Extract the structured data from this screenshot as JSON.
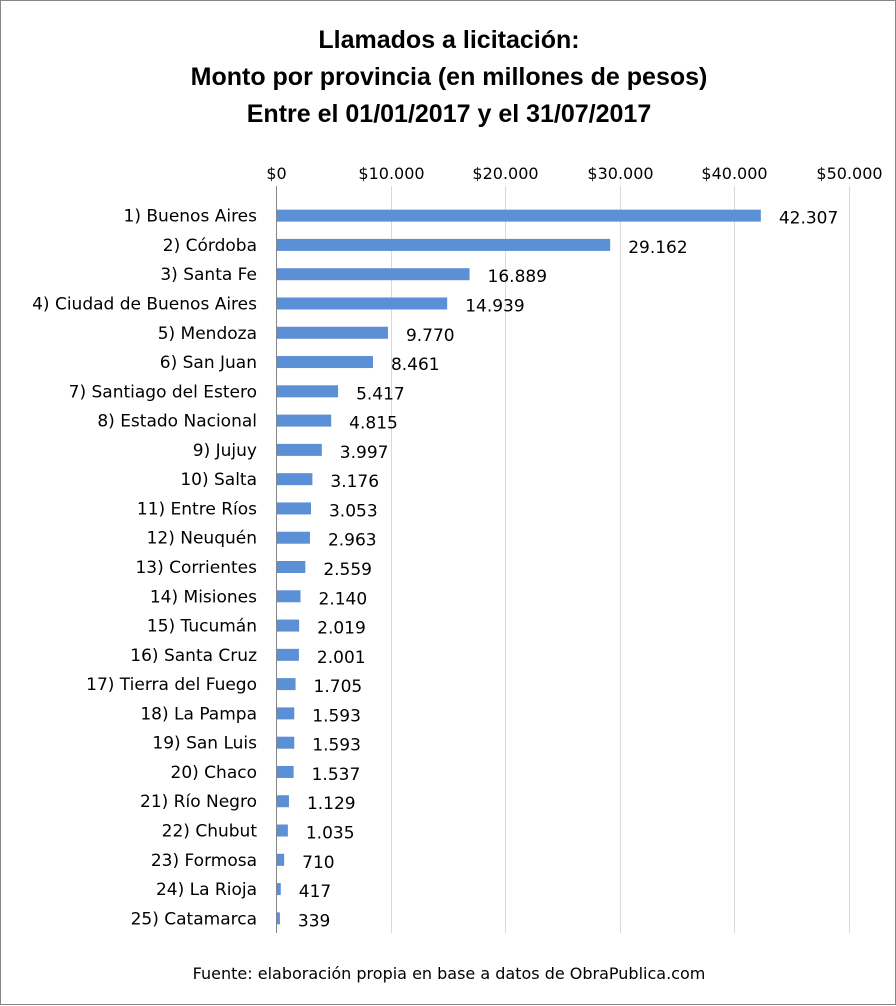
{
  "chart_data": {
    "type": "bar",
    "orientation": "horizontal",
    "title": [
      "Llamados a licitación:",
      "Monto por provincia (en millones de pesos)",
      "Entre el 01/01/2017 y el 31/07/2017"
    ],
    "categories": [
      "1) Buenos Aires",
      "2) Córdoba",
      "3) Santa Fe",
      "4) Ciudad de Buenos Aires",
      "5) Mendoza",
      "6) San Juan",
      "7) Santiago del Estero",
      "8) Estado Nacional",
      "9) Jujuy",
      "10) Salta",
      "11) Entre Ríos",
      "12) Neuquén",
      "13) Corrientes",
      "14) Misiones",
      "15) Tucumán",
      "16) Santa Cruz",
      "17) Tierra del Fuego",
      "18) La Pampa",
      "19) San Luis",
      "20) Chaco",
      "21) Río Negro",
      "22) Chubut",
      "23) Formosa",
      "24) La Rioja",
      "25) Catamarca"
    ],
    "values": [
      42307,
      29162,
      16889,
      14939,
      9770,
      8461,
      5417,
      4815,
      3997,
      3176,
      3053,
      2963,
      2559,
      2140,
      2019,
      2001,
      1705,
      1593,
      1593,
      1537,
      1129,
      1035,
      710,
      417,
      339
    ],
    "value_labels": [
      "42.307",
      "29.162",
      "16.889",
      "14.939",
      "9.770",
      "8.461",
      "5.417",
      "4.815",
      "3.997",
      "3.176",
      "3.053",
      "2.963",
      "2.559",
      "2.140",
      "2.019",
      "2.001",
      "1.705",
      "1.593",
      "1.593",
      "1.537",
      "1.129",
      "1.035",
      "710",
      "417",
      "339"
    ],
    "x_ticks": [
      0,
      10000,
      20000,
      30000,
      40000,
      50000
    ],
    "x_tick_labels": [
      "$0",
      "$10.000",
      "$20.000",
      "$30.000",
      "$40.000",
      "$50.000"
    ],
    "xlim": [
      0,
      50000
    ],
    "x_axis_position": "top",
    "grid": true,
    "bar_color": "#5b8fd6",
    "xlabel": "",
    "ylabel": ""
  },
  "source_note": "Fuente: elaboración propia en base a datos de ObraPublica.com"
}
